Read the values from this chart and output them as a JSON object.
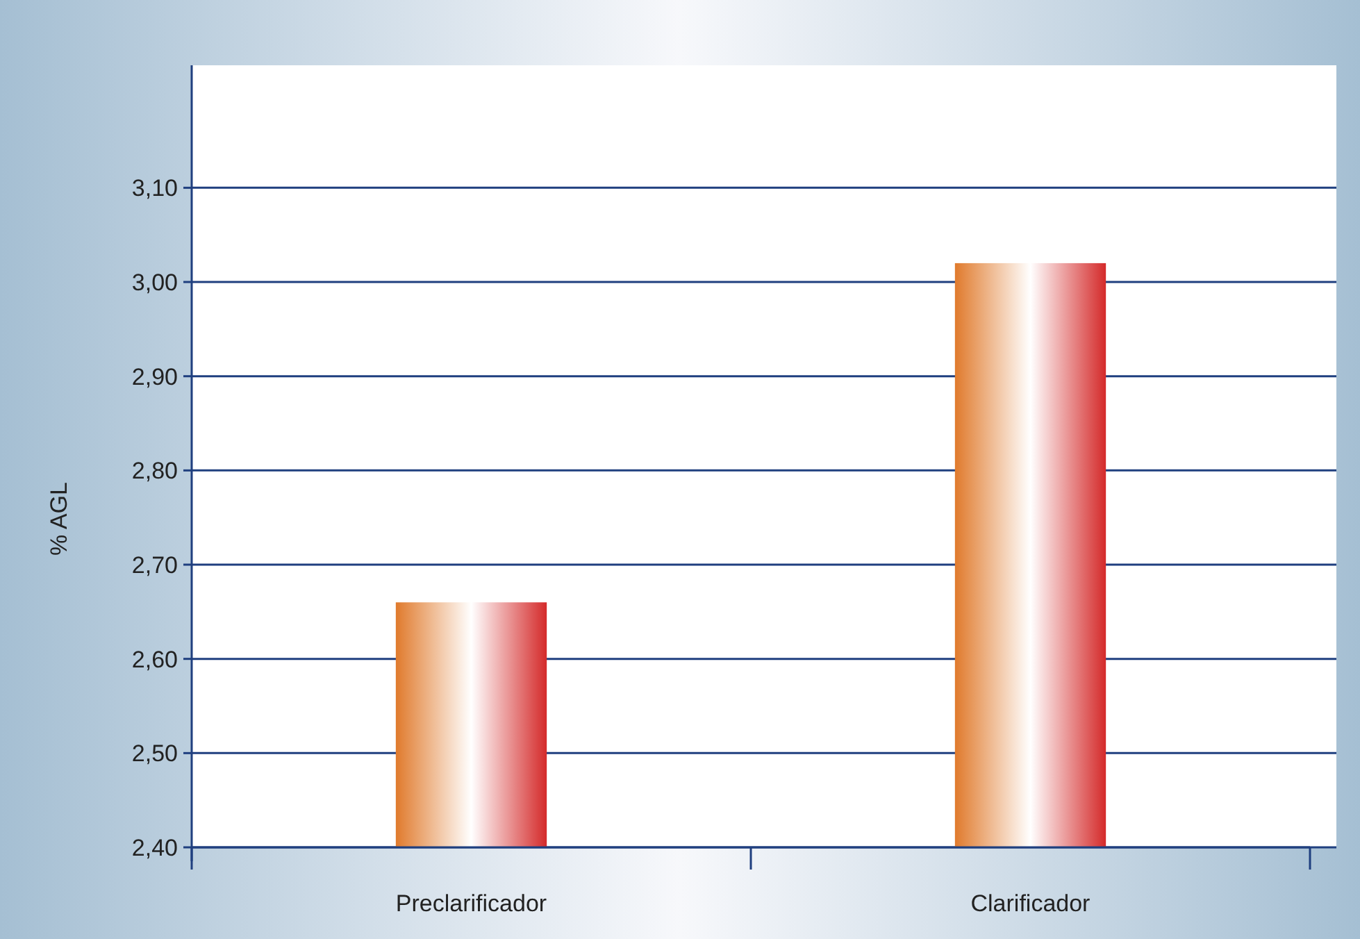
{
  "chart_data": {
    "type": "bar",
    "ylabel": "% AGL",
    "categories": [
      "Preclarificador",
      "Clarificador"
    ],
    "values": [
      2.66,
      3.02
    ],
    "color": "#e07a2c",
    "ylim": [
      2.4,
      3.23
    ],
    "yticks": [
      {
        "value": 2.4,
        "label": "2,40"
      },
      {
        "value": 2.5,
        "label": "2,50"
      },
      {
        "value": 2.6,
        "label": "2,60"
      },
      {
        "value": 2.7,
        "label": "2,70"
      },
      {
        "value": 2.8,
        "label": "2,80"
      },
      {
        "value": 2.9,
        "label": "2,90"
      },
      {
        "value": 3.0,
        "label": "3,00"
      },
      {
        "value": 3.1,
        "label": "3,10"
      }
    ],
    "grid": "y"
  }
}
